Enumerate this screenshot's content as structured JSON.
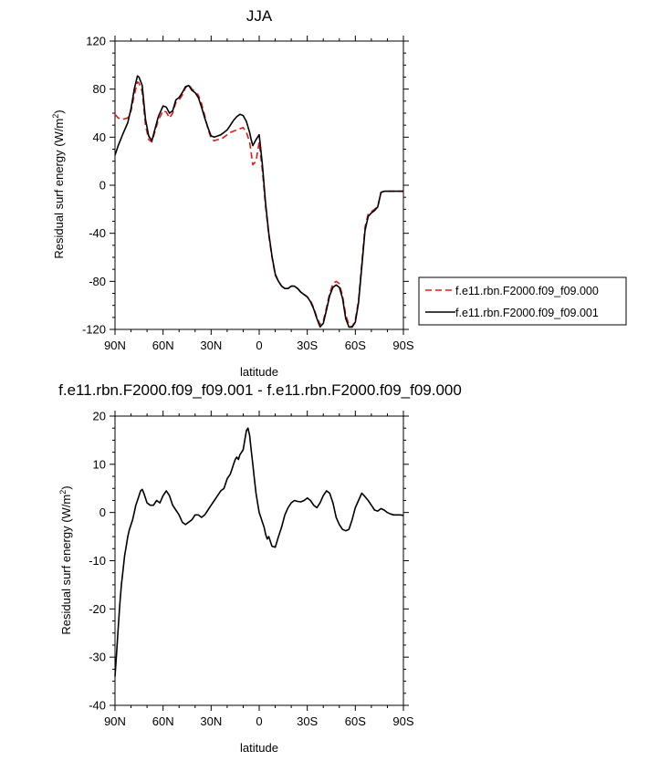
{
  "chart_data": [
    {
      "type": "line",
      "title": "JJA",
      "xlabel": "latitude",
      "ylabel": "Residual surf energy (W/m²)",
      "ylabel_main": "Residual surf energy (W/m",
      "ylabel_sup": "2",
      "ylabel_tail": ")",
      "xlim": [
        90,
        -90
      ],
      "ylim": [
        -120,
        120
      ],
      "x_ticks": [
        90,
        60,
        30,
        0,
        -30,
        -60,
        -90
      ],
      "x_tick_labels": [
        "90N",
        "60N",
        "30N",
        "0",
        "30S",
        "60S",
        "90S"
      ],
      "y_ticks": [
        120,
        80,
        40,
        0,
        -40,
        -80,
        -120
      ],
      "y_tick_labels": [
        "120",
        "80",
        "40",
        "0",
        "-40",
        "-80",
        "-120"
      ],
      "legend_position": "right",
      "series": [
        {
          "name": "f.e11.rbn.F2000.f09_f09.000",
          "color": "#e01b1b",
          "dash": "dashed",
          "x": [
            90,
            88,
            85,
            82,
            80,
            78,
            76,
            75,
            73,
            71,
            69,
            67,
            65,
            63,
            60,
            58,
            56,
            54,
            52,
            50,
            48,
            46,
            44,
            43,
            42,
            40,
            38,
            36,
            34,
            32,
            30,
            28,
            26,
            24,
            22,
            20,
            18,
            16,
            14,
            12,
            10,
            8,
            6,
            5,
            4,
            2,
            0,
            -2,
            -4,
            -6,
            -8,
            -10,
            -12,
            -14,
            -16,
            -18,
            -20,
            -22,
            -24,
            -26,
            -28,
            -30,
            -32,
            -34,
            -36,
            -38,
            -40,
            -42,
            -44,
            -46,
            -48,
            -50,
            -52,
            -54,
            -56,
            -58,
            -60,
            -62,
            -64,
            -66,
            -68,
            -70,
            -72,
            -74,
            -76,
            -78,
            -80,
            -82,
            -84,
            -86,
            -88,
            -90
          ],
          "y": [
            59,
            56,
            55,
            56,
            62,
            75,
            86,
            85,
            78,
            50,
            38,
            36,
            45,
            54,
            62,
            61,
            56,
            60,
            69,
            71,
            75,
            81,
            84,
            82,
            80,
            78,
            75,
            68,
            58,
            47,
            39,
            37,
            38,
            38,
            40,
            42,
            44,
            45,
            46,
            47,
            48,
            44,
            36,
            27,
            17,
            20,
            36,
            12,
            -18,
            -42,
            -60,
            -75,
            -80,
            -84,
            -86,
            -86,
            -84,
            -84,
            -86,
            -89,
            -91,
            -93,
            -96,
            -102,
            -110,
            -116,
            -113,
            -102,
            -90,
            -82,
            -80,
            -82,
            -92,
            -108,
            -116,
            -118,
            -112,
            -96,
            -65,
            -35,
            -24,
            -22,
            -20,
            -18,
            -6,
            -5,
            -5,
            -5,
            -5,
            -5,
            -5,
            -5
          ]
        },
        {
          "name": "f.e11.rbn.F2000.f09_f09.001",
          "color": "#000000",
          "dash": "solid",
          "x": [
            90,
            88,
            85,
            82,
            80,
            78,
            76,
            75,
            73,
            71,
            69,
            67,
            65,
            63,
            60,
            58,
            56,
            54,
            52,
            50,
            48,
            46,
            44,
            43,
            42,
            40,
            38,
            36,
            34,
            32,
            30,
            28,
            26,
            24,
            22,
            20,
            18,
            16,
            14,
            12,
            10,
            8,
            6,
            5,
            4,
            2,
            0,
            -2,
            -4,
            -6,
            -8,
            -10,
            -12,
            -14,
            -16,
            -18,
            -20,
            -22,
            -24,
            -26,
            -28,
            -30,
            -32,
            -34,
            -36,
            -38,
            -40,
            -42,
            -44,
            -46,
            -48,
            -50,
            -52,
            -54,
            -56,
            -58,
            -60,
            -62,
            -64,
            -66,
            -68,
            -70,
            -72,
            -74,
            -76,
            -78,
            -80,
            -82,
            -84,
            -86,
            -88,
            -90
          ],
          "y": [
            25,
            33,
            43,
            52,
            64,
            80,
            91,
            90,
            83,
            55,
            41,
            37,
            47,
            57,
            66,
            65,
            60,
            62,
            71,
            73,
            77,
            82,
            83,
            81,
            79,
            77,
            73,
            65,
            56,
            48,
            41,
            40,
            41,
            42,
            44,
            46,
            50,
            54,
            57,
            59,
            58,
            53,
            44,
            38,
            33,
            38,
            42,
            17,
            -15,
            -40,
            -59,
            -74,
            -80,
            -84,
            -86,
            -86,
            -84,
            -84,
            -86,
            -89,
            -91,
            -93,
            -97,
            -103,
            -111,
            -118,
            -115,
            -104,
            -92,
            -85,
            -83,
            -85,
            -94,
            -111,
            -118,
            -118,
            -114,
            -98,
            -68,
            -38,
            -26,
            -23,
            -21,
            -18,
            -6,
            -5,
            -5,
            -5,
            -5,
            -5,
            -5,
            -5
          ]
        }
      ]
    },
    {
      "type": "line",
      "title": "f.e11.rbn.F2000.f09_f09.001 - f.e11.rbn.F2000.f09_f09.000",
      "xlabel": "latitude",
      "ylabel": "Residual surf energy (W/m²)",
      "ylabel_main": "Residual surf energy (W/m",
      "ylabel_sup": "2",
      "ylabel_tail": ")",
      "xlim": [
        90,
        -90
      ],
      "ylim": [
        -40,
        20
      ],
      "x_ticks": [
        90,
        60,
        30,
        0,
        -30,
        -60,
        -90
      ],
      "x_tick_labels": [
        "90N",
        "60N",
        "30N",
        "0",
        "30S",
        "60S",
        "90S"
      ],
      "y_ticks": [
        20,
        10,
        0,
        -10,
        -20,
        -30,
        -40
      ],
      "y_tick_labels": [
        "20",
        "10",
        "0",
        "-10",
        "-20",
        "-30",
        "-40"
      ],
      "series": [
        {
          "color": "#000000",
          "dash": "solid",
          "x": [
            90,
            89,
            88,
            87,
            86,
            85,
            84,
            83,
            82,
            81,
            80,
            79,
            78,
            77,
            76,
            75,
            74,
            73,
            72,
            70,
            68,
            66,
            64,
            62,
            60,
            58,
            56,
            54,
            52,
            50,
            48,
            46,
            44,
            42,
            40,
            38,
            36,
            34,
            32,
            30,
            28,
            26,
            24,
            22,
            20,
            18,
            17,
            16,
            15,
            14,
            13,
            12,
            11,
            10,
            9,
            8,
            7,
            6,
            5,
            4,
            3,
            2,
            1,
            0,
            -1,
            -2,
            -3,
            -4,
            -5,
            -6,
            -8,
            -10,
            -12,
            -14,
            -16,
            -18,
            -20,
            -22,
            -24,
            -26,
            -28,
            -30,
            -32,
            -34,
            -36,
            -38,
            -40,
            -42,
            -44,
            -46,
            -48,
            -50,
            -52,
            -54,
            -56,
            -58,
            -60,
            -62,
            -64,
            -66,
            -68,
            -70,
            -72,
            -74,
            -76,
            -78,
            -80,
            -82,
            -84,
            -86,
            -88,
            -90
          ],
          "y": [
            -34,
            -29,
            -24,
            -19,
            -15,
            -12,
            -9,
            -7,
            -5,
            -3.5,
            -2.5,
            -1.5,
            0,
            1.5,
            2.5,
            3.5,
            4.5,
            4.8,
            4,
            2,
            1.5,
            1.5,
            2.5,
            2,
            3.5,
            4.5,
            3.5,
            1.5,
            0.5,
            -0.5,
            -2,
            -2.5,
            -2,
            -1.5,
            -0.5,
            -0.5,
            -1,
            -0.5,
            0.5,
            1.5,
            2.5,
            3.5,
            4.5,
            5,
            7,
            8,
            9,
            10,
            11,
            11.5,
            11,
            12,
            12.5,
            13,
            15,
            17,
            17.5,
            16,
            13,
            10,
            7,
            4,
            2,
            0,
            -1,
            -2,
            -3,
            -4.5,
            -5.5,
            -5,
            -7,
            -7.2,
            -5,
            -3,
            -0.5,
            1,
            2,
            2.5,
            2.3,
            2.2,
            2.5,
            3,
            2.5,
            1.5,
            1,
            2,
            3.5,
            4.5,
            4,
            2,
            -1,
            -2.5,
            -3.5,
            -3.8,
            -3.5,
            -1.5,
            1,
            2.5,
            4,
            3.3,
            2.5,
            1.5,
            0.5,
            0.3,
            0.8,
            0.5,
            0,
            -0.3,
            -0.5,
            -0.5,
            -0.5,
            -0.6
          ]
        }
      ]
    }
  ]
}
